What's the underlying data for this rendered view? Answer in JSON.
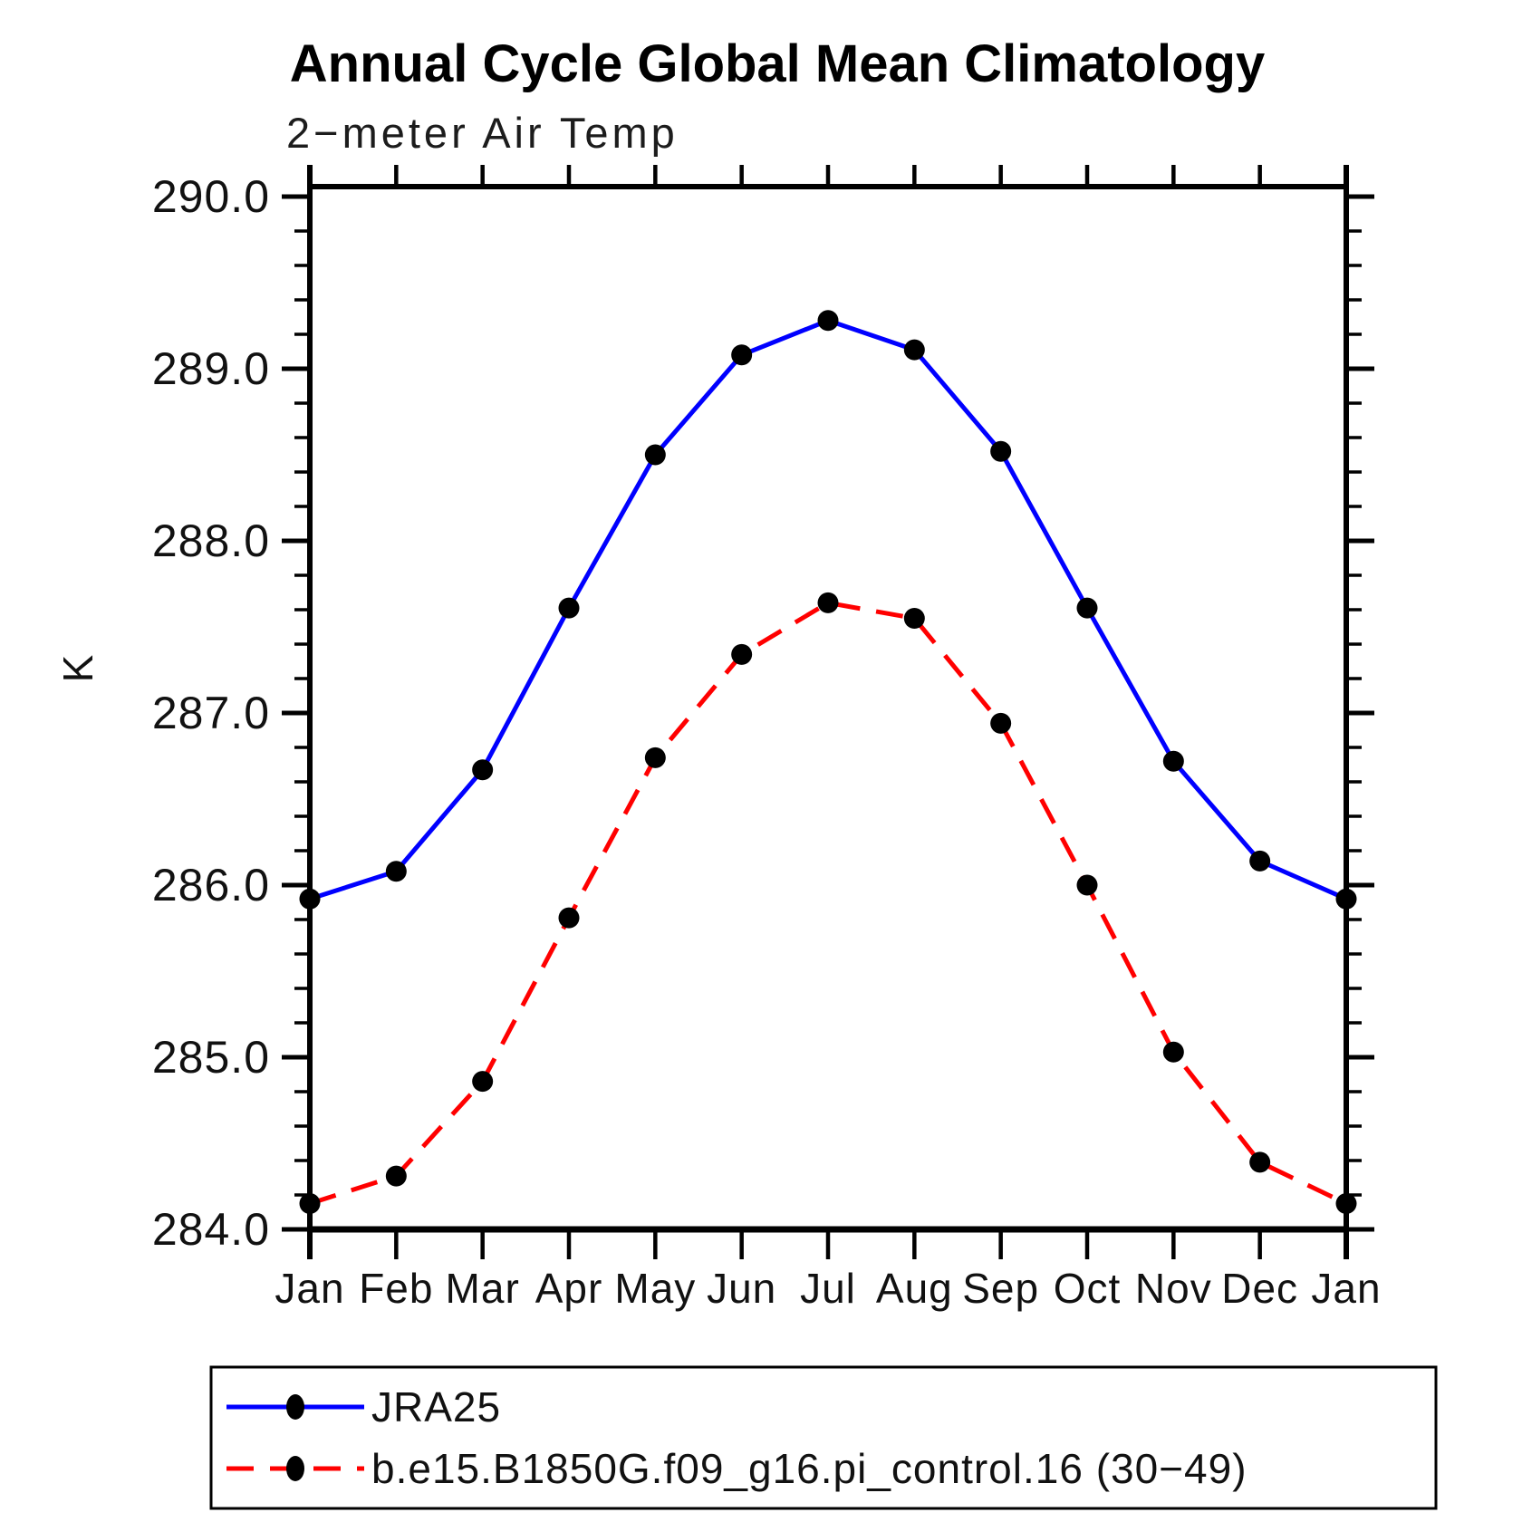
{
  "chart_data": {
    "type": "line",
    "title": "Annual Cycle Global Mean Climatology",
    "subtitle": "2−meter Air Temp",
    "ylabel": "K",
    "xlabel": "",
    "x_categories": [
      "Jan",
      "Feb",
      "Mar",
      "Apr",
      "May",
      "Jun",
      "Jul",
      "Aug",
      "Sep",
      "Oct",
      "Nov",
      "Dec",
      "Jan"
    ],
    "y_ticks": [
      284.0,
      285.0,
      286.0,
      287.0,
      288.0,
      289.0,
      290.0
    ],
    "y_tick_labels": [
      "284.0",
      "285.0",
      "286.0",
      "287.0",
      "288.0",
      "289.0",
      "290.0"
    ],
    "ylim": [
      284.0,
      290.1
    ],
    "y_minor_tick_interval": 0.2,
    "grid": false,
    "legend_position": "bottom-left-box",
    "colors": {
      "axis": "#000000",
      "marker": "#000000",
      "background": "#ffffff"
    },
    "series": [
      {
        "name": "JRA25",
        "color": "#0000ff",
        "line_style": "solid",
        "marker": "circle",
        "values": [
          285.92,
          286.08,
          286.67,
          287.61,
          288.5,
          289.08,
          289.28,
          289.11,
          288.52,
          287.61,
          286.72,
          286.14,
          285.92
        ]
      },
      {
        "name": "b.e15.B1850G.f09_g16.pi_control.16 (30−49)",
        "color": "#ff0000",
        "line_style": "dashed",
        "marker": "circle",
        "values": [
          284.15,
          284.31,
          284.86,
          285.81,
          286.74,
          287.34,
          287.64,
          287.55,
          286.94,
          286.0,
          285.03,
          284.39,
          284.15
        ]
      }
    ]
  }
}
